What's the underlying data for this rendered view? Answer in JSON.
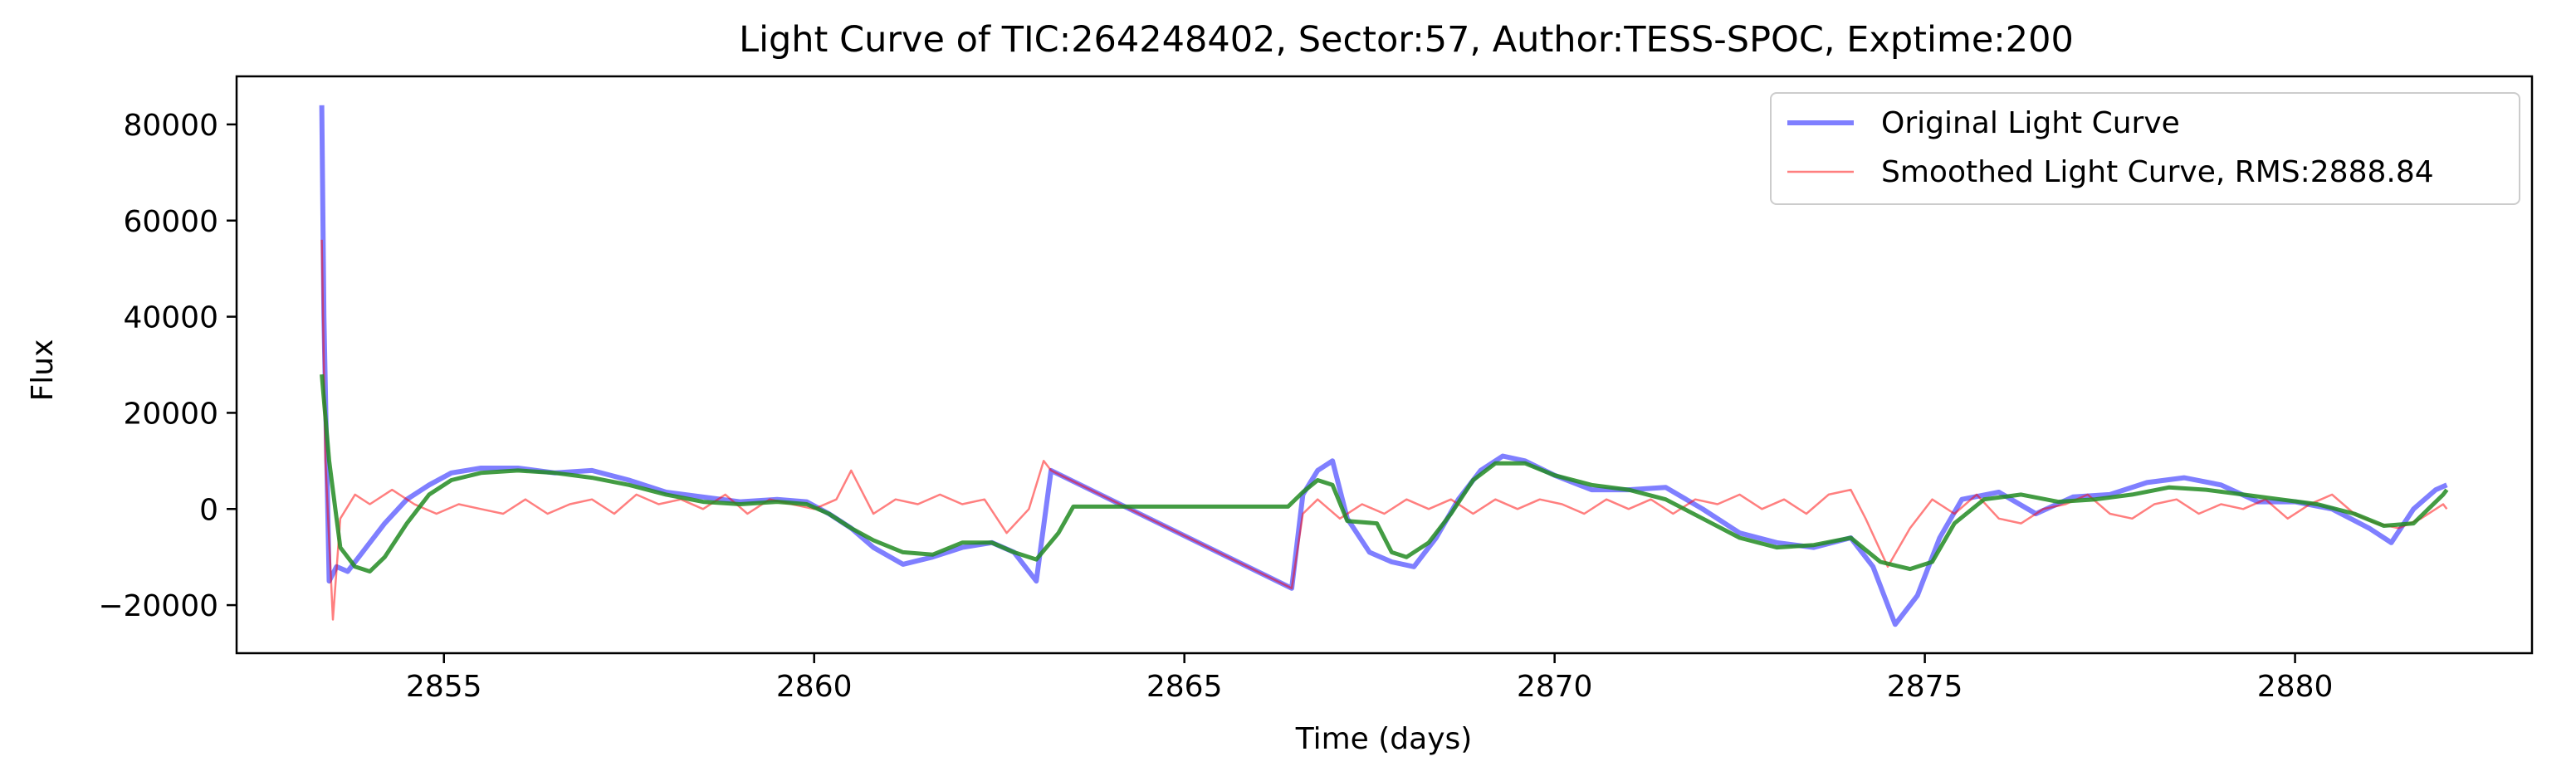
{
  "chart_data": {
    "type": "line",
    "title": "Light Curve of TIC:264248402, Sector:57, Author:TESS-SPOC, Exptime:200",
    "xlabel": "Time (days)",
    "ylabel": "Flux",
    "xlim": [
      2852.2,
      2883.2
    ],
    "ylim": [
      -30000,
      90000
    ],
    "x_ticks": [
      2855,
      2860,
      2865,
      2870,
      2875,
      2880
    ],
    "x_tick_labels": [
      "2855",
      "2860",
      "2865",
      "2870",
      "2875",
      "2880"
    ],
    "y_ticks": [
      -20000,
      0,
      20000,
      40000,
      60000,
      80000
    ],
    "y_tick_labels": [
      "−20000",
      "0",
      "20000",
      "40000",
      "60000",
      "80000"
    ],
    "grid": false,
    "legend_position": "top-right",
    "series": [
      {
        "name": "Original Light Curve",
        "color": "#0000ff",
        "opacity": 0.5,
        "legend": true,
        "x": [
          2853.35,
          2853.38,
          2853.45,
          2853.55,
          2853.7,
          2853.9,
          2854.2,
          2854.5,
          2854.8,
          2855.1,
          2855.5,
          2856.0,
          2856.5,
          2857.0,
          2857.5,
          2858.0,
          2858.5,
          2859.0,
          2859.5,
          2859.9,
          2860.2,
          2860.5,
          2860.8,
          2861.2,
          2861.6,
          2862.0,
          2862.4,
          2862.7,
          2863.0,
          2863.2,
          2866.45,
          2866.6,
          2866.8,
          2867.0,
          2867.2,
          2867.5,
          2867.8,
          2868.1,
          2868.4,
          2868.7,
          2869.0,
          2869.3,
          2869.6,
          2870.0,
          2870.5,
          2871.0,
          2871.5,
          2872.0,
          2872.5,
          2873.0,
          2873.5,
          2874.0,
          2874.3,
          2874.6,
          2874.9,
          2875.2,
          2875.5,
          2876.0,
          2876.5,
          2877.0,
          2877.5,
          2878.0,
          2878.5,
          2879.0,
          2879.5,
          2880.0,
          2880.5,
          2881.0,
          2881.3,
          2881.6,
          2881.9,
          2882.05
        ],
        "y": [
          84000,
          40000,
          -15000,
          -12000,
          -13000,
          -9000,
          -3000,
          2000,
          5000,
          7500,
          8500,
          8500,
          7500,
          8000,
          6000,
          3500,
          2500,
          1500,
          2000,
          1500,
          -1000,
          -4000,
          -8000,
          -11500,
          -10000,
          -8000,
          -7000,
          -9000,
          -15000,
          8000,
          -16500,
          3000,
          8000,
          10000,
          -2000,
          -9000,
          -11000,
          -12000,
          -6000,
          2000,
          8000,
          11000,
          10000,
          7000,
          4000,
          4000,
          4500,
          0,
          -5000,
          -7000,
          -8000,
          -6000,
          -12000,
          -24000,
          -18000,
          -6000,
          2000,
          3500,
          -1000,
          2500,
          3000,
          5500,
          6500,
          5000,
          1500,
          1500,
          0,
          -4000,
          -7000,
          0,
          4000,
          5000
        ]
      },
      {
        "name": "Smoothed Light Curve, RMS:2888.84",
        "color": "#ff0000",
        "opacity": 0.5,
        "legend": true,
        "x": [
          2853.35,
          2853.4,
          2853.5,
          2853.6,
          2853.8,
          2854.0,
          2854.3,
          2854.6,
          2854.9,
          2855.2,
          2855.5,
          2855.8,
          2856.1,
          2856.4,
          2856.7,
          2857.0,
          2857.3,
          2857.6,
          2857.9,
          2858.2,
          2858.5,
          2858.8,
          2859.1,
          2859.4,
          2859.7,
          2860.0,
          2860.3,
          2860.5,
          2860.8,
          2861.1,
          2861.4,
          2861.7,
          2862.0,
          2862.3,
          2862.6,
          2862.9,
          2863.1,
          2863.2,
          2866.45,
          2866.6,
          2866.8,
          2867.1,
          2867.4,
          2867.7,
          2868.0,
          2868.3,
          2868.6,
          2868.9,
          2869.2,
          2869.5,
          2869.8,
          2870.1,
          2870.4,
          2870.7,
          2871.0,
          2871.3,
          2871.6,
          2871.9,
          2872.2,
          2872.5,
          2872.8,
          2873.1,
          2873.4,
          2873.7,
          2874.0,
          2874.2,
          2874.5,
          2874.8,
          2875.1,
          2875.4,
          2875.7,
          2876.0,
          2876.3,
          2876.6,
          2876.9,
          2877.2,
          2877.5,
          2877.8,
          2878.1,
          2878.4,
          2878.7,
          2879.0,
          2879.3,
          2879.6,
          2879.9,
          2880.2,
          2880.5,
          2880.8,
          2881.1,
          2881.4,
          2881.7,
          2882.0,
          2882.05
        ],
        "y": [
          56000,
          10000,
          -23000,
          -2000,
          3000,
          1000,
          4000,
          1000,
          -1000,
          1000,
          0,
          -1000,
          2000,
          -1000,
          1000,
          2000,
          -1000,
          3000,
          1000,
          2000,
          0,
          3000,
          -1000,
          2000,
          1000,
          0,
          2000,
          8000,
          -1000,
          2000,
          1000,
          3000,
          1000,
          2000,
          -5000,
          0,
          10000,
          8000,
          -16500,
          -1000,
          2000,
          -2000,
          1000,
          -1000,
          2000,
          0,
          2000,
          -1000,
          2000,
          0,
          2000,
          1000,
          -1000,
          2000,
          0,
          2000,
          -1000,
          2000,
          1000,
          3000,
          0,
          2000,
          -1000,
          3000,
          4000,
          -2000,
          -12000,
          -4000,
          2000,
          -1000,
          3000,
          -2000,
          -3000,
          0,
          1000,
          3000,
          -1000,
          -2000,
          1000,
          2000,
          -1000,
          1000,
          0,
          2000,
          -2000,
          1000,
          3000,
          -1000,
          -3000,
          -4000,
          -2000,
          1000,
          0
        ]
      },
      {
        "name": "",
        "color": "#228b22",
        "opacity": 0.85,
        "legend": false,
        "x": [
          2853.35,
          2853.45,
          2853.6,
          2853.8,
          2854.0,
          2854.2,
          2854.5,
          2854.8,
          2855.1,
          2855.5,
          2856.0,
          2856.5,
          2857.0,
          2857.5,
          2858.0,
          2858.5,
          2859.0,
          2859.5,
          2859.9,
          2860.2,
          2860.5,
          2860.8,
          2861.2,
          2861.6,
          2862.0,
          2862.4,
          2862.7,
          2863.0,
          2863.3,
          2863.5,
          2866.4,
          2866.6,
          2866.8,
          2867.0,
          2867.2,
          2867.6,
          2867.8,
          2868.0,
          2868.3,
          2868.6,
          2868.9,
          2869.2,
          2869.6,
          2870.0,
          2870.5,
          2871.0,
          2871.5,
          2872.0,
          2872.5,
          2873.0,
          2873.5,
          2874.0,
          2874.4,
          2874.8,
          2875.1,
          2875.4,
          2875.8,
          2876.3,
          2876.8,
          2877.3,
          2877.8,
          2878.3,
          2878.8,
          2879.3,
          2879.8,
          2880.3,
          2880.8,
          2881.2,
          2881.6,
          2882.0,
          2882.05
        ],
        "y": [
          28000,
          10000,
          -8000,
          -12000,
          -13000,
          -10000,
          -3000,
          3000,
          6000,
          7500,
          8000,
          7500,
          6500,
          5000,
          3000,
          1500,
          1000,
          1500,
          1000,
          -1000,
          -4000,
          -6500,
          -9000,
          -9500,
          -7000,
          -7000,
          -9000,
          -10500,
          -5000,
          500,
          500,
          3500,
          6000,
          5000,
          -2500,
          -3000,
          -9000,
          -10000,
          -7000,
          -1000,
          6000,
          9500,
          9500,
          7000,
          5000,
          4000,
          2000,
          -2000,
          -6000,
          -8000,
          -7500,
          -6000,
          -11000,
          -12500,
          -11000,
          -3000,
          2000,
          3000,
          1500,
          2000,
          3000,
          4500,
          4000,
          3000,
          2000,
          1000,
          -1000,
          -3500,
          -3000,
          3000,
          4000
        ]
      }
    ]
  }
}
